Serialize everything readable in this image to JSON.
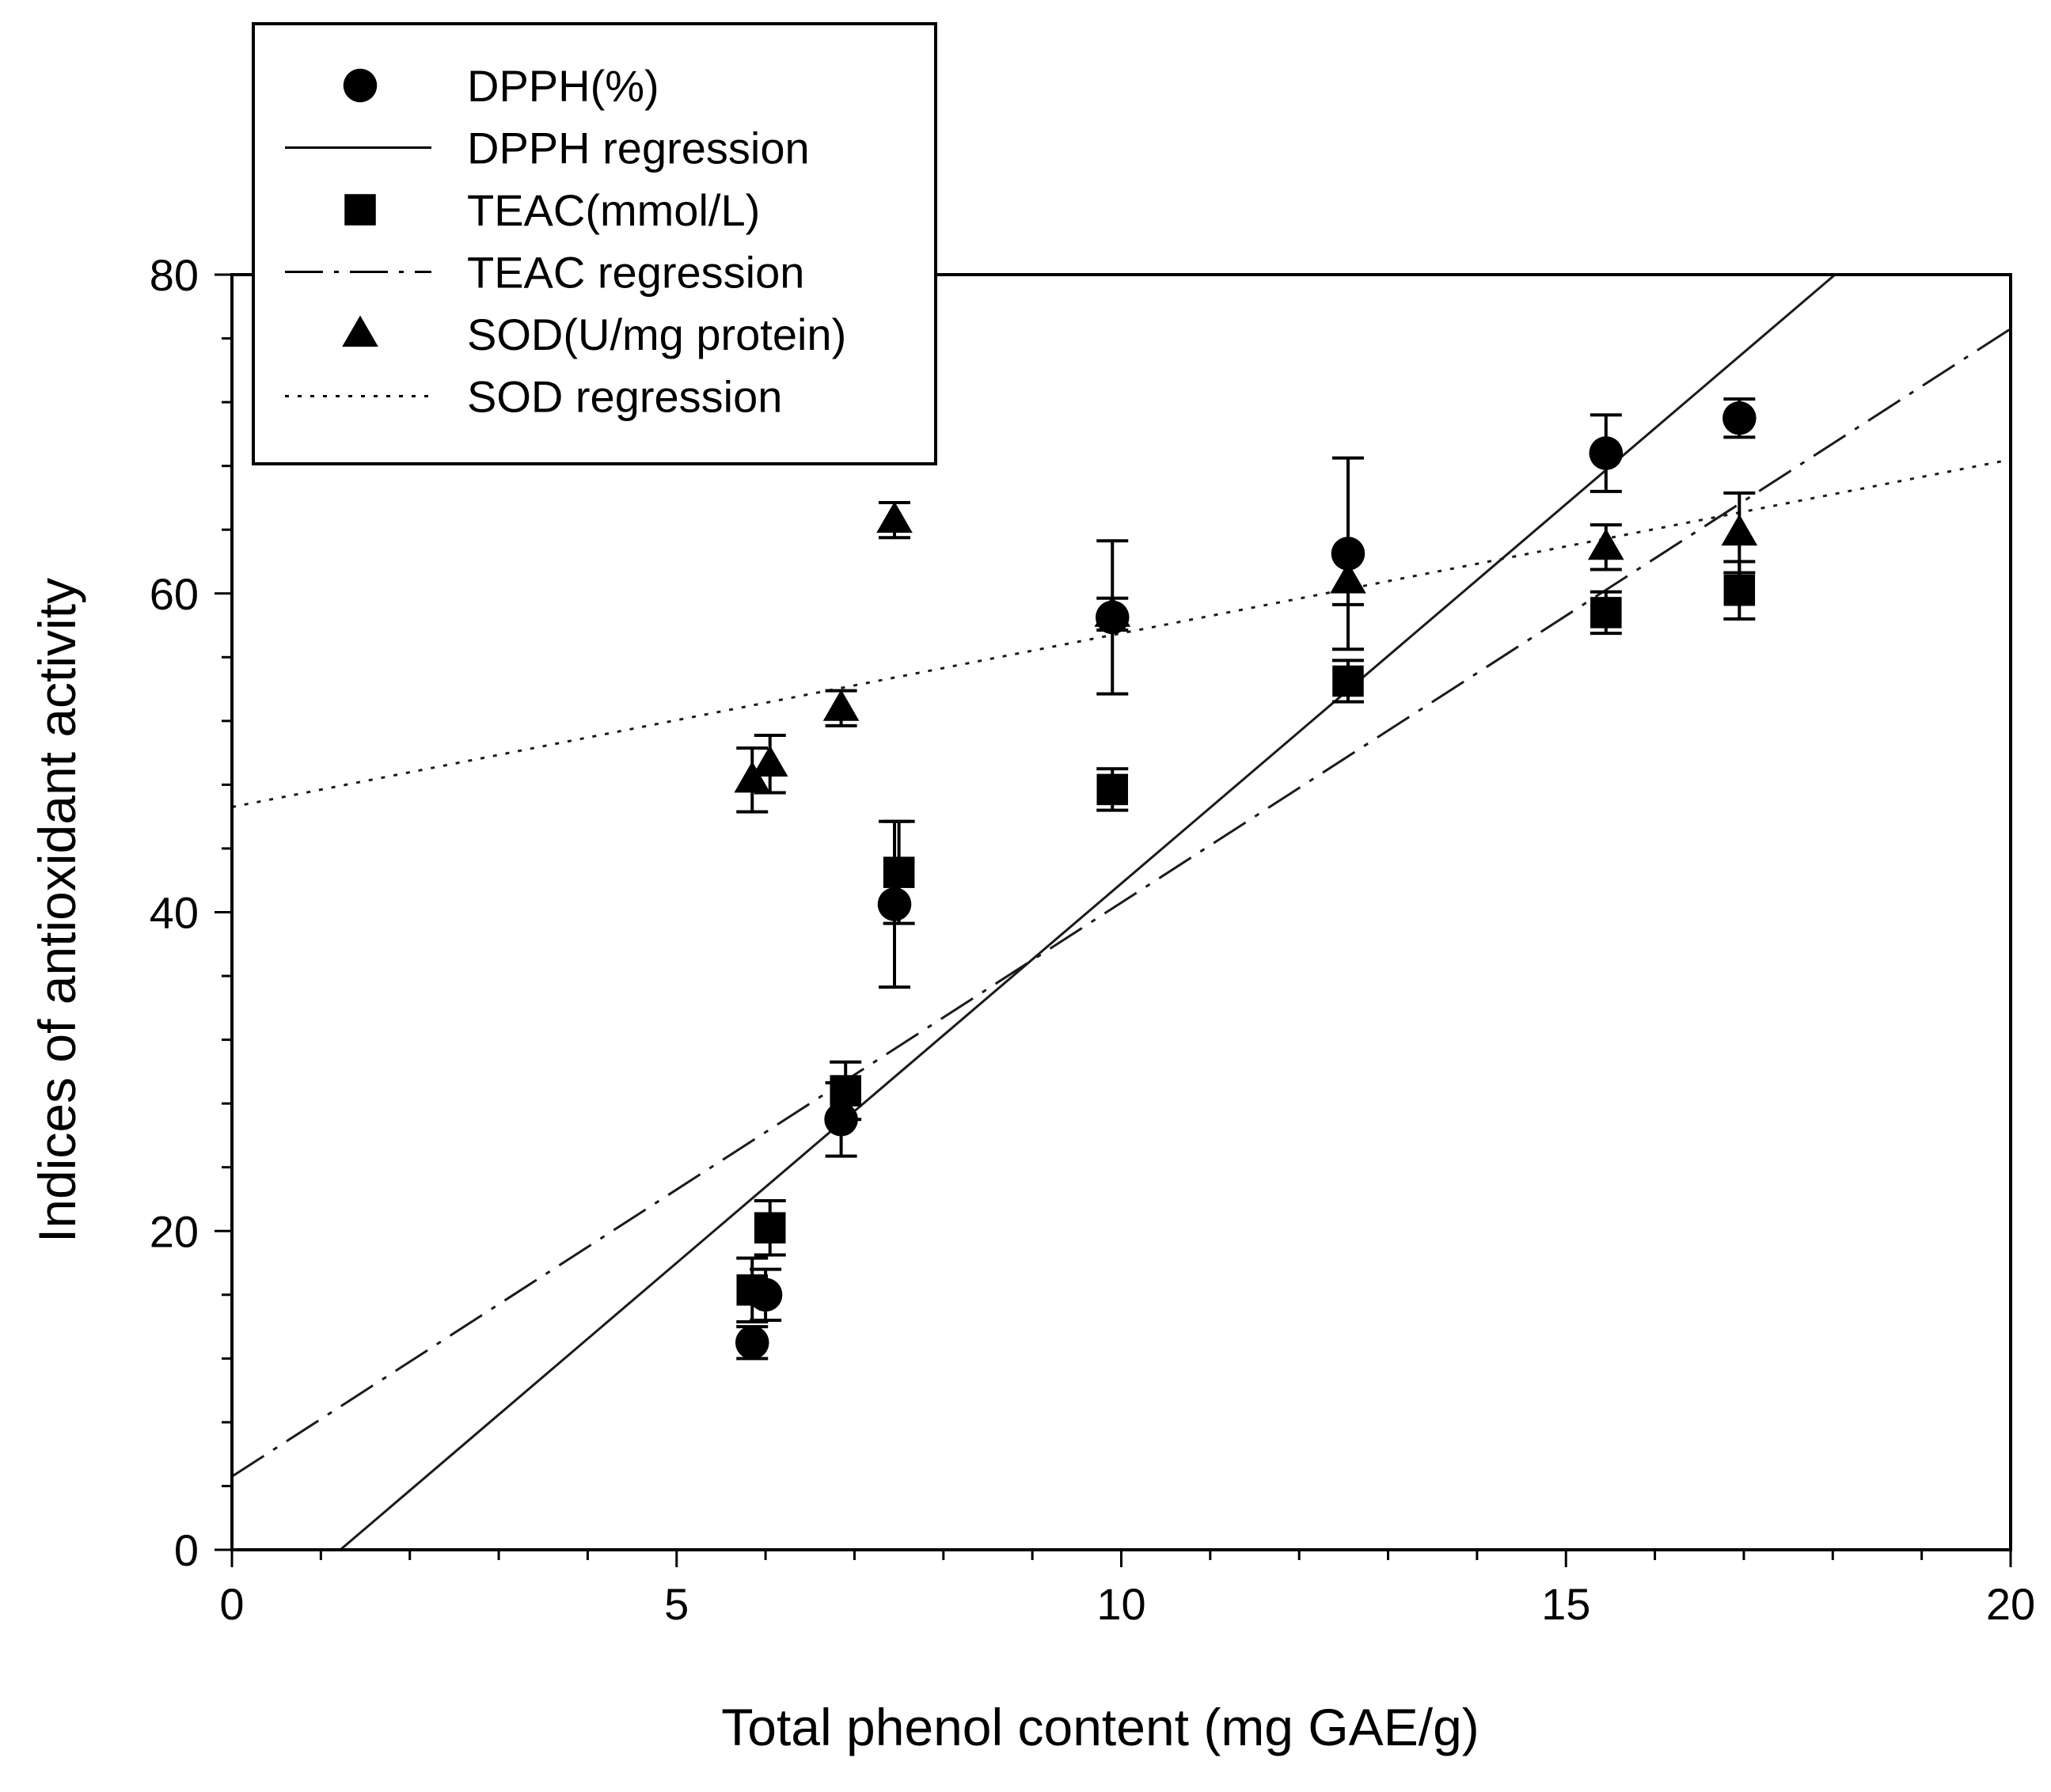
{
  "chart_data": {
    "type": "scatter",
    "title": "",
    "xlabel": "Total phenol content (mg GAE/g)",
    "ylabel": "Indices of antioxidant activity",
    "xlim": [
      0,
      20
    ],
    "ylim": [
      0,
      80
    ],
    "xticks": [
      0,
      5,
      10,
      15,
      20
    ],
    "yticks": [
      0,
      20,
      40,
      60,
      80
    ],
    "grid": false,
    "legend_position": "top-left",
    "series": [
      {
        "name": "DPPH(%)",
        "marker": "circle",
        "points": [
          {
            "x": 5.85,
            "y": 13.0,
            "err": 1.0
          },
          {
            "x": 6.0,
            "y": 16.0,
            "err": 1.6
          },
          {
            "x": 6.85,
            "y": 27.0,
            "err": 2.3
          },
          {
            "x": 7.45,
            "y": 40.5,
            "err": 5.2
          },
          {
            "x": 9.9,
            "y": 58.5,
            "err": 4.8
          },
          {
            "x": 12.55,
            "y": 62.5,
            "err": 6.0
          },
          {
            "x": 15.45,
            "y": 68.8,
            "err": 2.4
          },
          {
            "x": 16.95,
            "y": 71.0,
            "err": 1.2
          }
        ]
      },
      {
        "name": "TEAC(mmol/L)",
        "marker": "square",
        "points": [
          {
            "x": 5.85,
            "y": 16.3,
            "err": 2.0
          },
          {
            "x": 6.05,
            "y": 20.2,
            "err": 1.7
          },
          {
            "x": 6.9,
            "y": 28.8,
            "err": 1.8
          },
          {
            "x": 7.5,
            "y": 42.5,
            "err": 3.2
          },
          {
            "x": 9.9,
            "y": 47.7,
            "err": 1.3
          },
          {
            "x": 12.55,
            "y": 54.5,
            "err": 1.3
          },
          {
            "x": 15.45,
            "y": 58.8,
            "err": 1.3
          },
          {
            "x": 16.95,
            "y": 60.2,
            "err": 1.8
          }
        ]
      },
      {
        "name": "SOD(U/mg protein)",
        "marker": "triangle",
        "points": [
          {
            "x": 5.85,
            "y": 48.3,
            "err": 2.0
          },
          {
            "x": 6.05,
            "y": 49.3,
            "err": 1.8
          },
          {
            "x": 6.85,
            "y": 52.8,
            "err": 1.1
          },
          {
            "x": 7.45,
            "y": 64.6,
            "err": 1.1
          },
          {
            "x": 9.9,
            "y": 58.7,
            "err": 1.0
          },
          {
            "x": 12.55,
            "y": 60.8,
            "err": 1.5
          },
          {
            "x": 15.45,
            "y": 62.9,
            "err": 1.4
          },
          {
            "x": 16.95,
            "y": 63.8,
            "err": 2.5
          }
        ]
      }
    ],
    "regressions": [
      {
        "name": "DPPH regression",
        "style": "solid",
        "slope": 4.76,
        "intercept": -5.8
      },
      {
        "name": "TEAC regression",
        "style": "dashdot",
        "slope": 3.6,
        "intercept": 4.6
      },
      {
        "name": "SOD regression",
        "style": "dotted",
        "slope": 1.09,
        "intercept": 46.6
      }
    ],
    "legend": [
      {
        "label": "DPPH(%)",
        "kind": "marker",
        "marker": "circle"
      },
      {
        "label": "DPPH regression",
        "kind": "line",
        "style": "solid"
      },
      {
        "label": "TEAC(mmol/L)",
        "kind": "marker",
        "marker": "square"
      },
      {
        "label": "TEAC regression",
        "kind": "line",
        "style": "dashdot"
      },
      {
        "label": "SOD(U/mg protein)",
        "kind": "marker",
        "marker": "triangle"
      },
      {
        "label": "SOD regression",
        "kind": "line",
        "style": "dotted"
      }
    ]
  }
}
